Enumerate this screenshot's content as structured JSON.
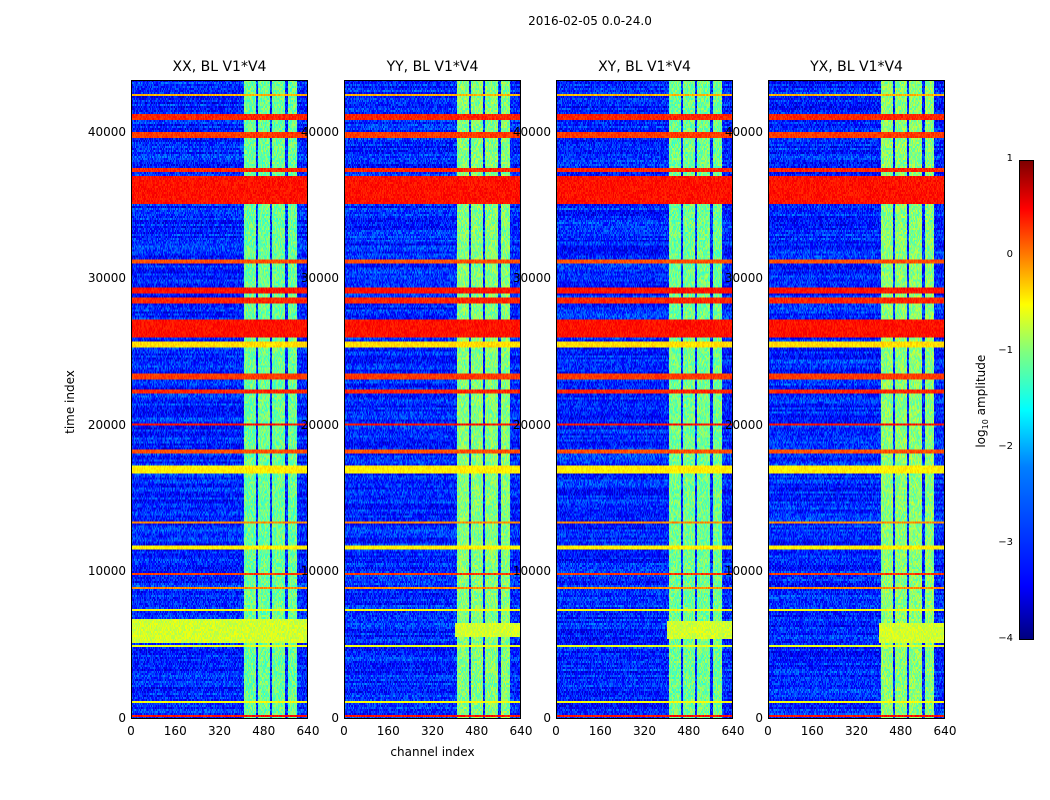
{
  "suptitle": "2016-02-05 0.0-24.0",
  "chart_data": {
    "type": "heatmap",
    "panels": [
      {
        "title": "XX, BL V1*V4",
        "column_gain": 1.0,
        "yellow_block": [
          5200,
          6800
        ]
      },
      {
        "title": "YY, BL V1*V4",
        "column_gain": 0.8,
        "yellow_block": [
          5600,
          6600
        ]
      },
      {
        "title": "XY, BL V1*V4",
        "column_gain": 0.95,
        "yellow_block": [
          5400,
          6700
        ]
      },
      {
        "title": "YX, BL V1*V4",
        "column_gain": 0.75,
        "yellow_block": [
          5200,
          6600
        ]
      }
    ],
    "xlabel": "channel index",
    "ylabel": "time index",
    "xlim": [
      0,
      640
    ],
    "ylim": [
      0,
      43600
    ],
    "xticks": [
      "0",
      "160",
      "320",
      "480",
      "640"
    ],
    "xtick_values": [
      0,
      160,
      320,
      480,
      640
    ],
    "yticks": [
      "0",
      "10000",
      "20000",
      "30000",
      "40000"
    ],
    "ytick_values": [
      0,
      10000,
      20000,
      30000,
      40000
    ],
    "background_log10": -3.2,
    "bright_channel_ranges": [
      [
        405,
        450
      ],
      [
        458,
        500
      ],
      [
        508,
        555
      ],
      [
        565,
        600
      ]
    ],
    "bright_channel_log10": -1.6,
    "time_bands": [
      {
        "range": [
          35200,
          37000
        ],
        "log10": 0.3
      },
      {
        "range": [
          40900,
          41300
        ],
        "log10": 0.2
      },
      {
        "range": [
          39600,
          40000
        ],
        "log10": 0.1
      },
      {
        "range": [
          42500,
          42700
        ],
        "log10": -0.5
      },
      {
        "range": [
          37300,
          37600
        ],
        "log10": 0.2
      },
      {
        "range": [
          31000,
          31400
        ],
        "log10": 0.0
      },
      {
        "range": [
          29000,
          29400
        ],
        "log10": 0.3
      },
      {
        "range": [
          28300,
          28700
        ],
        "log10": 0.2
      },
      {
        "range": [
          26000,
          27200
        ],
        "log10": 0.3
      },
      {
        "range": [
          25400,
          25700
        ],
        "log10": -0.7
      },
      {
        "range": [
          23200,
          23600
        ],
        "log10": 0.1
      },
      {
        "range": [
          22200,
          22500
        ],
        "log10": 0.2
      },
      {
        "range": [
          20000,
          20200
        ],
        "log10": 0.3
      },
      {
        "range": [
          18100,
          18400
        ],
        "log10": 0.0
      },
      {
        "range": [
          16800,
          17300
        ],
        "log10": -0.8
      },
      {
        "range": [
          13300,
          13500
        ],
        "log10": -0.3
      },
      {
        "range": [
          11600,
          11800
        ],
        "log10": -0.8
      },
      {
        "range": [
          9800,
          10000
        ],
        "log10": 0.1
      },
      {
        "range": [
          8800,
          8950
        ],
        "log10": -0.3
      },
      {
        "range": [
          7300,
          7450
        ],
        "log10": -0.9
      },
      {
        "range": [
          4900,
          5050
        ],
        "log10": -1.0
      },
      {
        "range": [
          1100,
          1250
        ],
        "log10": -0.9
      },
      {
        "range": [
          150,
          300
        ],
        "log10": 0.3
      }
    ],
    "colorbar": {
      "label": "log10 amplitude",
      "label_base": "log",
      "label_sub": "10",
      "label_rest": " amplitude",
      "range": [
        -4,
        1
      ],
      "ticks": [
        "1",
        "0",
        "−1",
        "−2",
        "−3",
        "−4"
      ],
      "tick_values": [
        1,
        0,
        -1,
        -2,
        -3,
        -4
      ],
      "colormap": "jet"
    }
  }
}
